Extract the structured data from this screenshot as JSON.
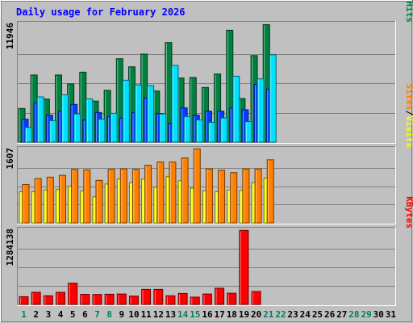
{
  "chart_data": {
    "type": "bar",
    "title": "Daily usage for February 2026",
    "x": [
      1,
      2,
      3,
      4,
      5,
      6,
      7,
      8,
      9,
      10,
      11,
      12,
      13,
      14,
      15,
      16,
      17,
      18,
      19,
      20,
      21,
      22,
      23,
      24,
      25,
      26,
      27,
      28,
      29,
      30,
      31
    ],
    "weekend_days": [
      1,
      7,
      8,
      14,
      15,
      21,
      22,
      28,
      29
    ],
    "colors": {
      "hits": "#008040",
      "files": "#0040ff",
      "pages": "#00e0ff",
      "visits": "#ffff00",
      "sites": "#ff8000",
      "kbytes": "#ff0000",
      "title": "#0000ff",
      "weekday": "#000000",
      "weekend": "#00805c"
    },
    "panels": [
      {
        "id": "hits-files-pages",
        "ymax_label": "11946",
        "ymax": 11946,
        "legend": [
          {
            "text": "Hits",
            "color": "#008040"
          },
          {
            "sep": "/"
          },
          {
            "text": "Files",
            "color": "#0040ff"
          },
          {
            "sep": "/"
          },
          {
            "text": "Pages",
            "color": "#00e0ff"
          }
        ],
        "series": [
          {
            "name": "Hits",
            "color": "#008040",
            "values": [
              3410,
              6800,
              4360,
              6800,
              5900,
              7090,
              4160,
              5250,
              8450,
              7630,
              8920,
              5180,
              10090,
              6500,
              6550,
              5540,
              6900,
              11340,
              4420,
              8770,
              11900,
              null,
              null,
              null,
              null,
              null,
              null,
              null,
              null,
              null,
              null
            ]
          },
          {
            "name": "Files",
            "color": "#0040ff",
            "values": [
              2320,
              4000,
              2730,
              3140,
              3820,
              2250,
              3000,
              2590,
              2450,
              3000,
              4460,
              2900,
              1910,
              3480,
              2730,
              3140,
              3140,
              3460,
              3280,
              5860,
              5380,
              null,
              null,
              null,
              null,
              null,
              null,
              null,
              null,
              null,
              null
            ]
          },
          {
            "name": "Pages",
            "color": "#00e0ff",
            "values": [
              1500,
              4580,
              2180,
              4800,
              2860,
              4380,
              2320,
              2920,
              6270,
              5800,
              5730,
              2860,
              7770,
              2590,
              2250,
              2000,
              2450,
              6680,
              2080,
              6410,
              8860,
              null,
              null,
              null,
              null,
              null,
              null,
              null,
              null,
              null,
              null
            ]
          }
        ]
      },
      {
        "id": "visits-sites",
        "ymax_label": "1607",
        "ymax": 1607,
        "legend": [
          {
            "text": "Visits",
            "color": "#ffff00"
          },
          {
            "sep": "/"
          },
          {
            "text": "Sites",
            "color": "#ff8000"
          }
        ],
        "series": [
          {
            "name": "Visits",
            "color": "#ffff00",
            "values": [
              680,
              680,
              720,
              730,
              800,
              700,
              570,
              850,
              960,
              880,
              960,
              780,
              1010,
              920,
              760,
              700,
              680,
              720,
              710,
              880,
              980,
              null,
              null,
              null,
              null,
              null,
              null,
              null,
              null,
              null,
              null
            ]
          },
          {
            "name": "Sites",
            "color": "#ff8000",
            "values": [
              840,
              970,
              1000,
              1040,
              1170,
              1160,
              930,
              1170,
              1180,
              1170,
              1260,
              1330,
              1330,
              1420,
              1620,
              1180,
              1150,
              1100,
              1180,
              1180,
              1380,
              null,
              null,
              null,
              null,
              null,
              null,
              null,
              null,
              null,
              null
            ]
          }
        ]
      },
      {
        "id": "kbytes",
        "ymax_label": "1284138",
        "ymax": 1284138,
        "legend": [
          {
            "text": "KBytes",
            "color": "#ff0000"
          }
        ],
        "series": [
          {
            "name": "KBytes",
            "color": "#ff0000",
            "values": [
              134000,
              210000,
              150000,
              210000,
              368000,
              174000,
              172000,
              176000,
              180000,
              144000,
              260000,
              260000,
              150000,
              190000,
              126000,
              180000,
              280000,
              194000,
              1280000,
              224000,
              null,
              null,
              null,
              null,
              null,
              null,
              null,
              null,
              null,
              null,
              null
            ]
          }
        ]
      }
    ]
  }
}
